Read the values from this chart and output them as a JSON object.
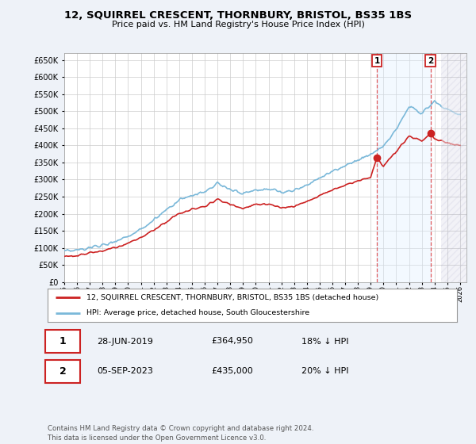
{
  "title": "12, SQUIRREL CRESCENT, THORNBURY, BRISTOL, BS35 1BS",
  "subtitle": "Price paid vs. HM Land Registry's House Price Index (HPI)",
  "ylim": [
    0,
    670000
  ],
  "yticks": [
    0,
    50000,
    100000,
    150000,
    200000,
    250000,
    300000,
    350000,
    400000,
    450000,
    500000,
    550000,
    600000,
    650000
  ],
  "xlim_start": 1995,
  "xlim_end": 2026.5,
  "legend_line1": "12, SQUIRREL CRESCENT, THORNBURY, BRISTOL, BS35 1BS (detached house)",
  "legend_line2": "HPI: Average price, detached house, South Gloucestershire",
  "transaction1_date": "28-JUN-2019",
  "transaction1_price": "£364,950",
  "transaction1_hpi": "18% ↓ HPI",
  "transaction2_date": "05-SEP-2023",
  "transaction2_price": "£435,000",
  "transaction2_hpi": "20% ↓ HPI",
  "footnote": "Contains HM Land Registry data © Crown copyright and database right 2024.\nThis data is licensed under the Open Government Licence v3.0.",
  "hpi_color": "#7ab8d9",
  "price_color": "#cc2222",
  "background_color": "#eef2f8",
  "plot_bg_color": "#ffffff",
  "grid_color": "#cccccc",
  "shade_color": "#ddeeff",
  "transaction1_x": 2019.49,
  "transaction2_x": 2023.68,
  "future_start": 2024.5
}
